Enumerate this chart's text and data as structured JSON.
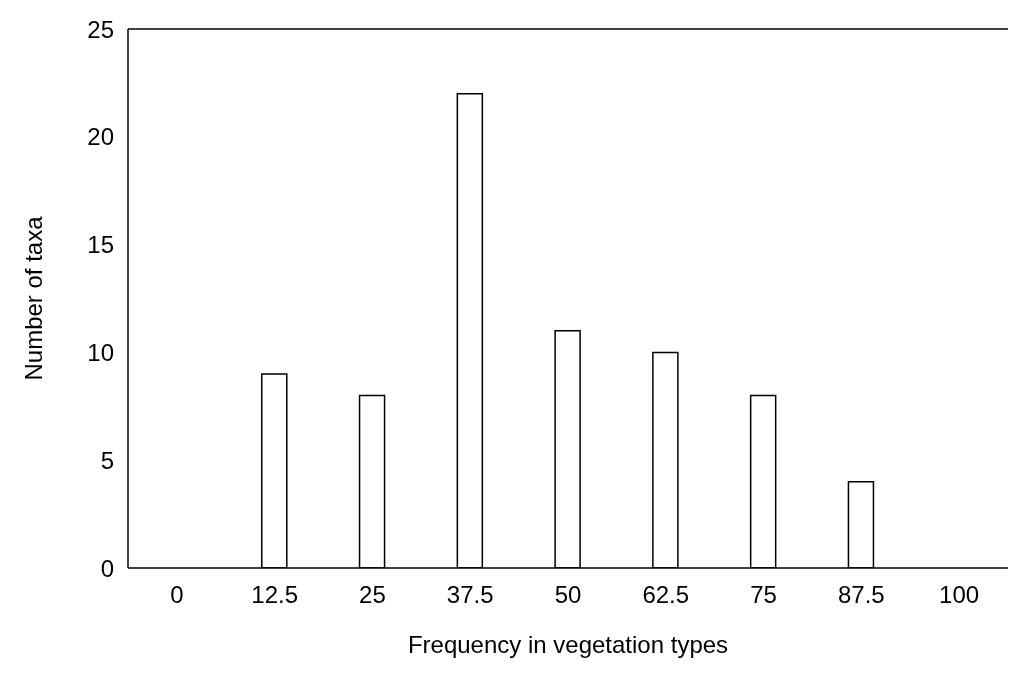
{
  "chart_data": {
    "type": "bar",
    "xlabel": "Frequency in vegetation types",
    "ylabel": "Number of taxa",
    "categories": [
      "0",
      "12.5",
      "25",
      "37.5",
      "50",
      "62.5",
      "75",
      "87.5",
      "100"
    ],
    "values": [
      0,
      9,
      8,
      22,
      11,
      10,
      8,
      4,
      0
    ],
    "color": "#ffffff",
    "ylim": [
      0,
      25
    ],
    "yticks": [
      0,
      5,
      10,
      15,
      20,
      25
    ],
    "grid": false
  }
}
